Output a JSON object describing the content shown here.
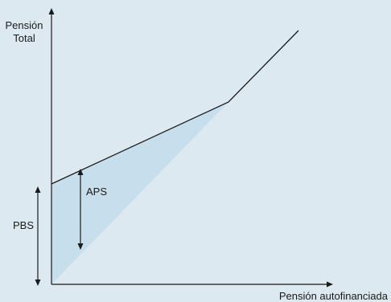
{
  "diagram": {
    "y_axis_label_line1": "Pensión",
    "y_axis_label_line2": "Total",
    "x_axis_label": "Pensión autofinanciada",
    "aps_label": "APS",
    "pbs_label": "PBS",
    "background_color": "#dde9f1",
    "shaded_region_color": "#c7deec",
    "line_color": "#1a1a1a"
  }
}
